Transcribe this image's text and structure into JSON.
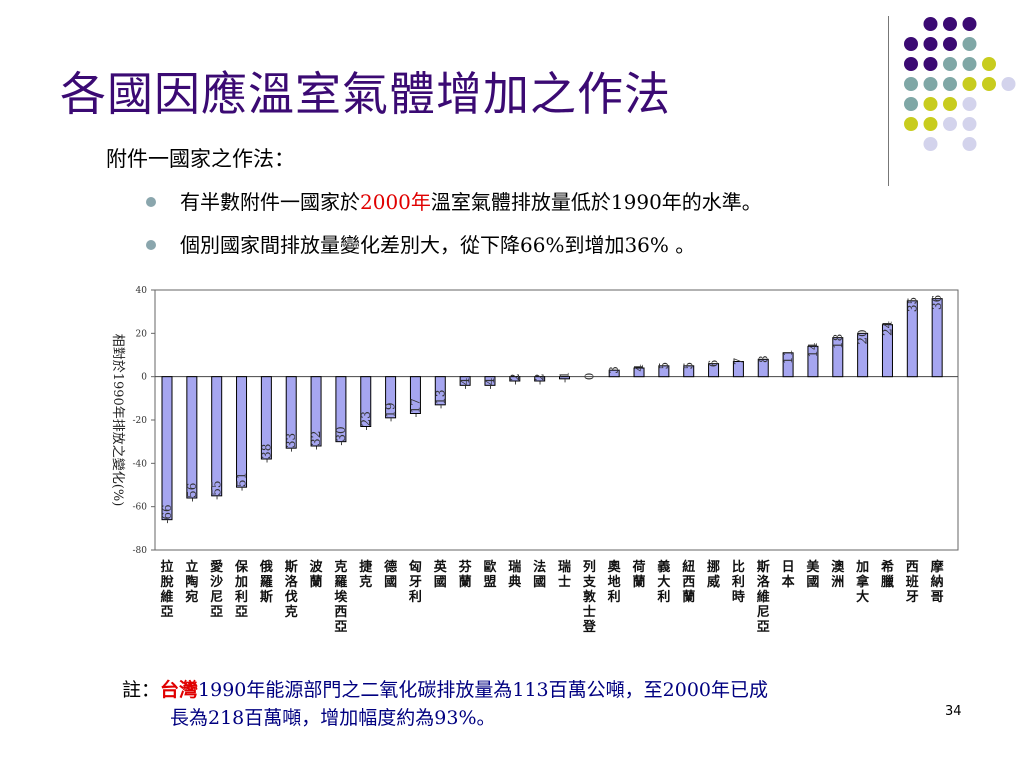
{
  "slide": {
    "title": "各國因應溫室氣體增加之作法",
    "subtitle": "附件一國家之作法：",
    "bullet1": {
      "pre": "有半數附件一國家於",
      "highlight": "2000年",
      "post": "溫室氣體排放量低於1990年的水準。"
    },
    "bullet2": "個別國家間排放量變化差別大，從下降66%到增加36% 。",
    "note": {
      "label": "註：",
      "highlight": "台灣",
      "text1": "1990年能源部門之二氧化碳排放量為113百萬公噸，至2000年已成",
      "text2": "長為218百萬噸，增加幅度約為93%。"
    },
    "page_number": "34",
    "colors": {
      "title": "#3b0a73",
      "bar_fill": "#a6a6f0",
      "highlight": "#e00000",
      "note_text": "#000080"
    }
  },
  "chart_data": {
    "type": "bar",
    "ylabel": "相對於1990年排放之變化(%)",
    "ylim": [
      -80,
      40
    ],
    "yticks": [
      40,
      20,
      0,
      -20,
      -40,
      -60,
      -80
    ],
    "categories": [
      "拉脫維亞",
      "立陶宛",
      "愛沙尼亞",
      "保加利亞",
      "俄羅斯",
      "斯洛伐克",
      "波蘭",
      "克羅埃西亞",
      "捷克",
      "德國",
      "匈牙利",
      "英國",
      "芬蘭",
      "歐盟",
      "瑞典",
      "法國",
      "瑞士",
      "列支敦士登",
      "奧地利",
      "荷蘭",
      "義大利",
      "紐西蘭",
      "挪威",
      "比利時",
      "斯洛維尼亞",
      "日本",
      "美國",
      "澳洲",
      "加拿大",
      "希臘",
      "西班牙",
      "摩納哥"
    ],
    "values": [
      -66,
      -56,
      -55,
      -51,
      -38,
      -33,
      -32,
      -30,
      -23,
      -19,
      -17,
      -13,
      -4,
      -4,
      -2,
      -2,
      -1,
      0,
      3,
      4,
      5,
      5,
      6,
      7,
      8,
      11,
      14,
      18,
      20,
      24,
      35,
      36
    ]
  }
}
